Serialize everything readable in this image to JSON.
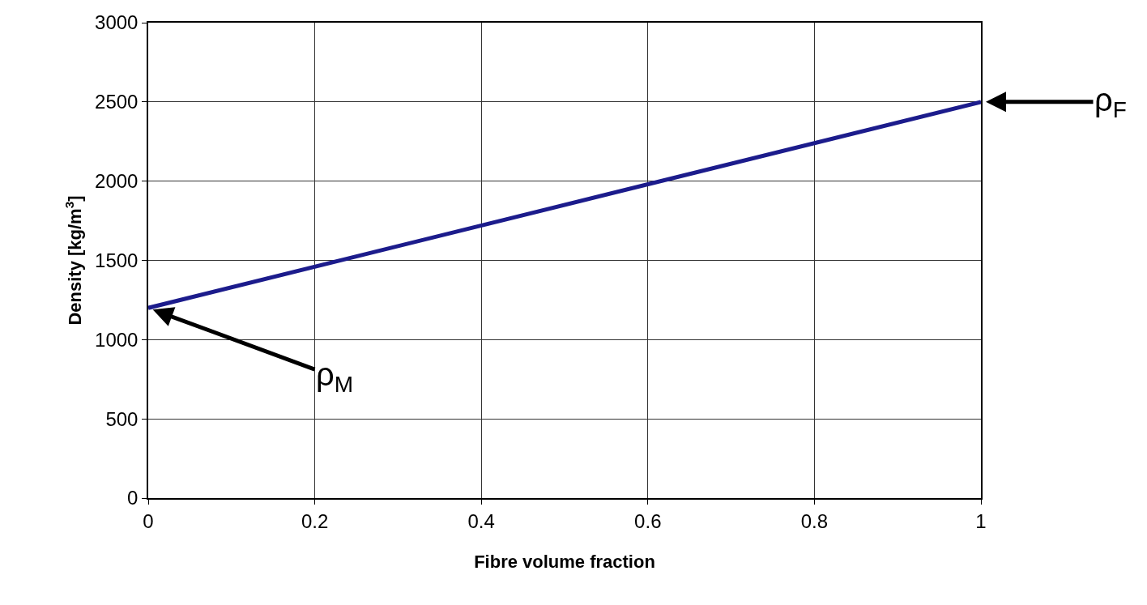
{
  "chart_data": {
    "type": "line",
    "xlabel": "Fibre volume fraction",
    "ylabel": "Density [kg/m$^{3}$]",
    "x": [
      0,
      1
    ],
    "series": [
      {
        "color": "#1c1c8c",
        "values": [
          1200,
          2500
        ]
      }
    ],
    "xlim": [
      0,
      1
    ],
    "xticks": [
      0,
      0.2,
      0.4,
      0.6,
      0.8,
      1
    ],
    "ylim": [
      0,
      3000
    ],
    "yticks": [
      0,
      500,
      1000,
      1500,
      2000,
      2500,
      3000
    ],
    "grid": true,
    "marker": "none",
    "line_style": "solid",
    "annotations": [
      {
        "text": "ρ$_{M}$",
        "x": 0,
        "y": 1200
      },
      {
        "text": "ρ$_{F}$",
        "x": 1,
        "y": 2500
      }
    ]
  }
}
